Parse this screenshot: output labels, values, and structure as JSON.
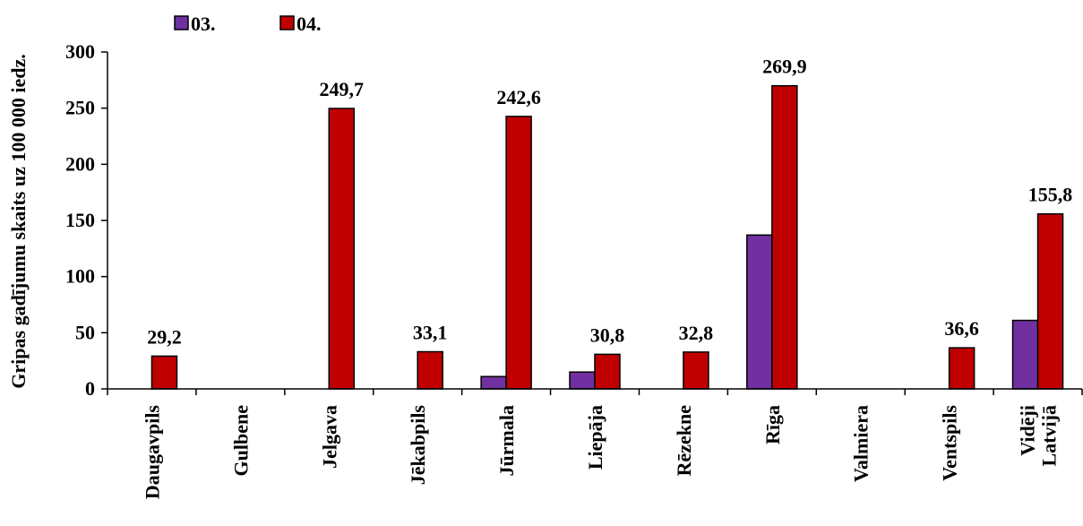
{
  "chart_data": {
    "type": "bar",
    "ylabel": "Gripas gadījumu skaits uz 100 000 iedz.",
    "ylim": [
      0,
      300
    ],
    "yticks": [
      0,
      50,
      100,
      150,
      200,
      250,
      300
    ],
    "grid": false,
    "legend_position": "top-left",
    "categories": [
      [
        "Daugavpils"
      ],
      [
        "Gulbene"
      ],
      [
        "Jelgava"
      ],
      [
        "Jēkabpils"
      ],
      [
        "Jūrmala"
      ],
      [
        "Liepāja"
      ],
      [
        "Rēzekne"
      ],
      [
        "Rīga"
      ],
      [
        "Valmiera"
      ],
      [
        "Ventspils"
      ],
      [
        "Vidēji",
        "Latvijā"
      ]
    ],
    "series": [
      {
        "name": "03.",
        "color": "#7030a0",
        "values": [
          0,
          0,
          0,
          0,
          11,
          15,
          0,
          137,
          0,
          0,
          61
        ],
        "labels": [
          "",
          "",
          "",
          "",
          "",
          "",
          "",
          "",
          "",
          "",
          ""
        ]
      },
      {
        "name": "04.",
        "color": "#c00000",
        "values": [
          29.2,
          0,
          249.7,
          33.1,
          242.6,
          30.8,
          32.8,
          269.9,
          0,
          36.6,
          155.8
        ],
        "labels": [
          "29,2",
          "",
          "249,7",
          "33,1",
          "242,6",
          "30,8",
          "32,8",
          "269,9",
          "",
          "36,6",
          "155,8"
        ]
      }
    ]
  }
}
